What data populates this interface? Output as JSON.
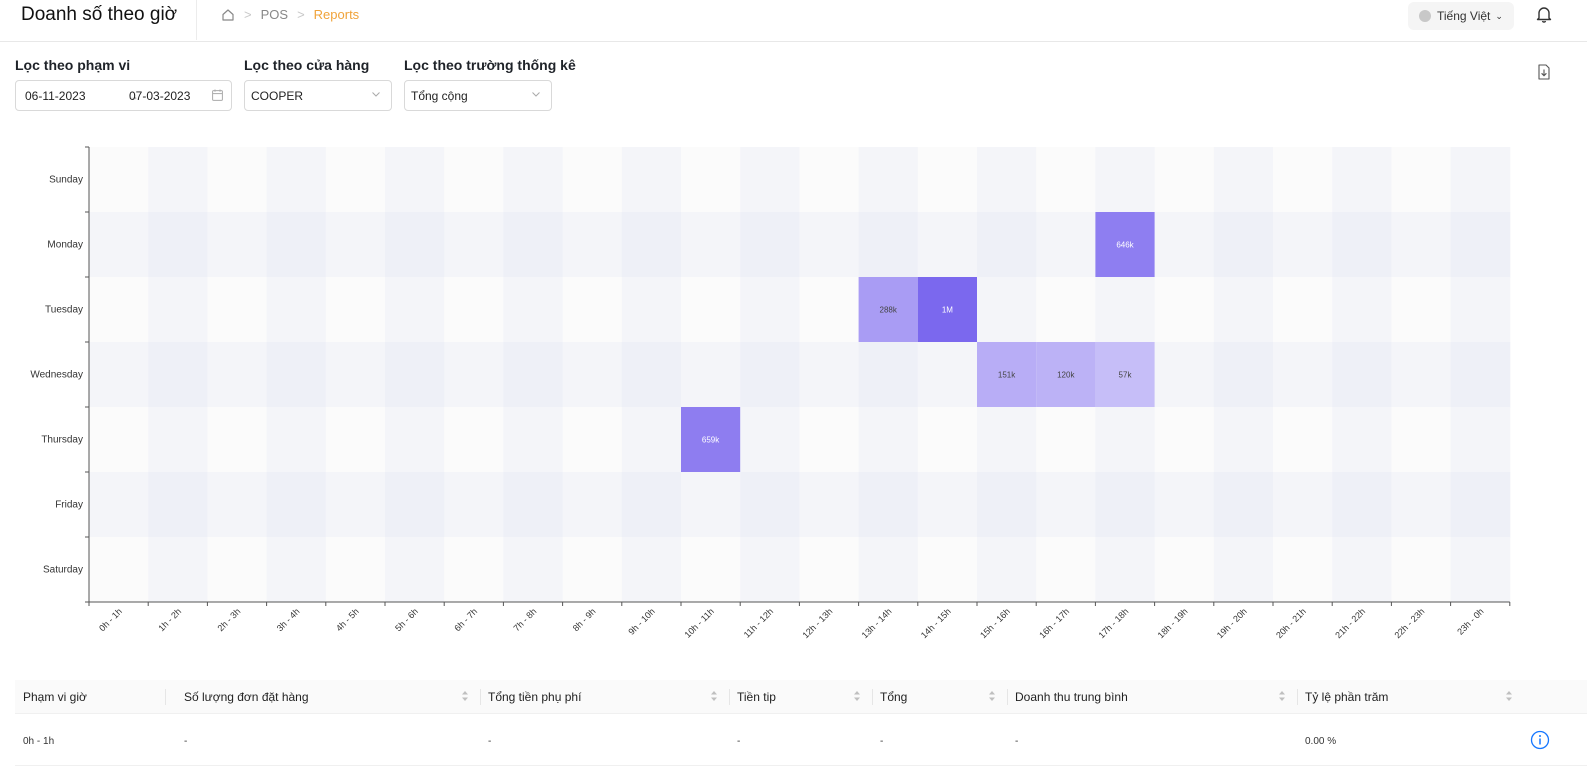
{
  "header": {
    "title": "Doanh số theo giờ",
    "breadcrumb": [
      "POS",
      "Reports"
    ],
    "language": "Tiếng Việt"
  },
  "filters": {
    "range_label": "Lọc theo phạm vi",
    "date_from": "06-11-2023",
    "date_to": "07-03-2023",
    "store_label": "Lọc theo cửa hàng",
    "store_value": "COOPER",
    "stat_label": "Lọc theo trường thống kê",
    "stat_value": "Tổng cộng"
  },
  "chart_data": {
    "type": "heatmap",
    "y_categories": [
      "Sunday",
      "Monday",
      "Tuesday",
      "Wednesday",
      "Thursday",
      "Friday",
      "Saturday"
    ],
    "x_categories": [
      "0h - 1h",
      "1h - 2h",
      "2h - 3h",
      "3h - 4h",
      "4h - 5h",
      "5h - 6h",
      "6h - 7h",
      "7h - 8h",
      "8h - 9h",
      "9h - 10h",
      "10h - 11h",
      "11h - 12h",
      "12h - 13h",
      "13h - 14h",
      "14h - 15h",
      "15h - 16h",
      "16h - 17h",
      "17h - 18h",
      "18h - 19h",
      "19h - 20h",
      "20h - 21h",
      "21h - 22h",
      "22h - 23h",
      "23h - 0h"
    ],
    "cells": [
      {
        "day": "Monday",
        "hour": "17h - 18h",
        "value": 646000,
        "label": "646k"
      },
      {
        "day": "Tuesday",
        "hour": "13h - 14h",
        "value": 288000,
        "label": "288k"
      },
      {
        "day": "Tuesday",
        "hour": "14h - 15h",
        "value": 1000000,
        "label": "1M"
      },
      {
        "day": "Wednesday",
        "hour": "15h - 16h",
        "value": 151000,
        "label": "151k"
      },
      {
        "day": "Wednesday",
        "hour": "16h - 17h",
        "value": 120000,
        "label": "120k"
      },
      {
        "day": "Wednesday",
        "hour": "17h - 18h",
        "value": 57000,
        "label": "57k"
      },
      {
        "day": "Thursday",
        "hour": "10h - 11h",
        "value": 659000,
        "label": "659k"
      }
    ],
    "accent": "#7b68ee"
  },
  "table": {
    "columns": [
      "Phạm vi giờ",
      "Số lượng đơn đặt hàng",
      "Tổng tiền phụ phí",
      "Tiền tip",
      "Tổng",
      "Doanh thu trung bình",
      "Tỷ lệ phần trăm"
    ],
    "rows": [
      [
        "0h - 1h",
        "-",
        "-",
        "-",
        "-",
        "-",
        "0.00 %"
      ]
    ]
  }
}
